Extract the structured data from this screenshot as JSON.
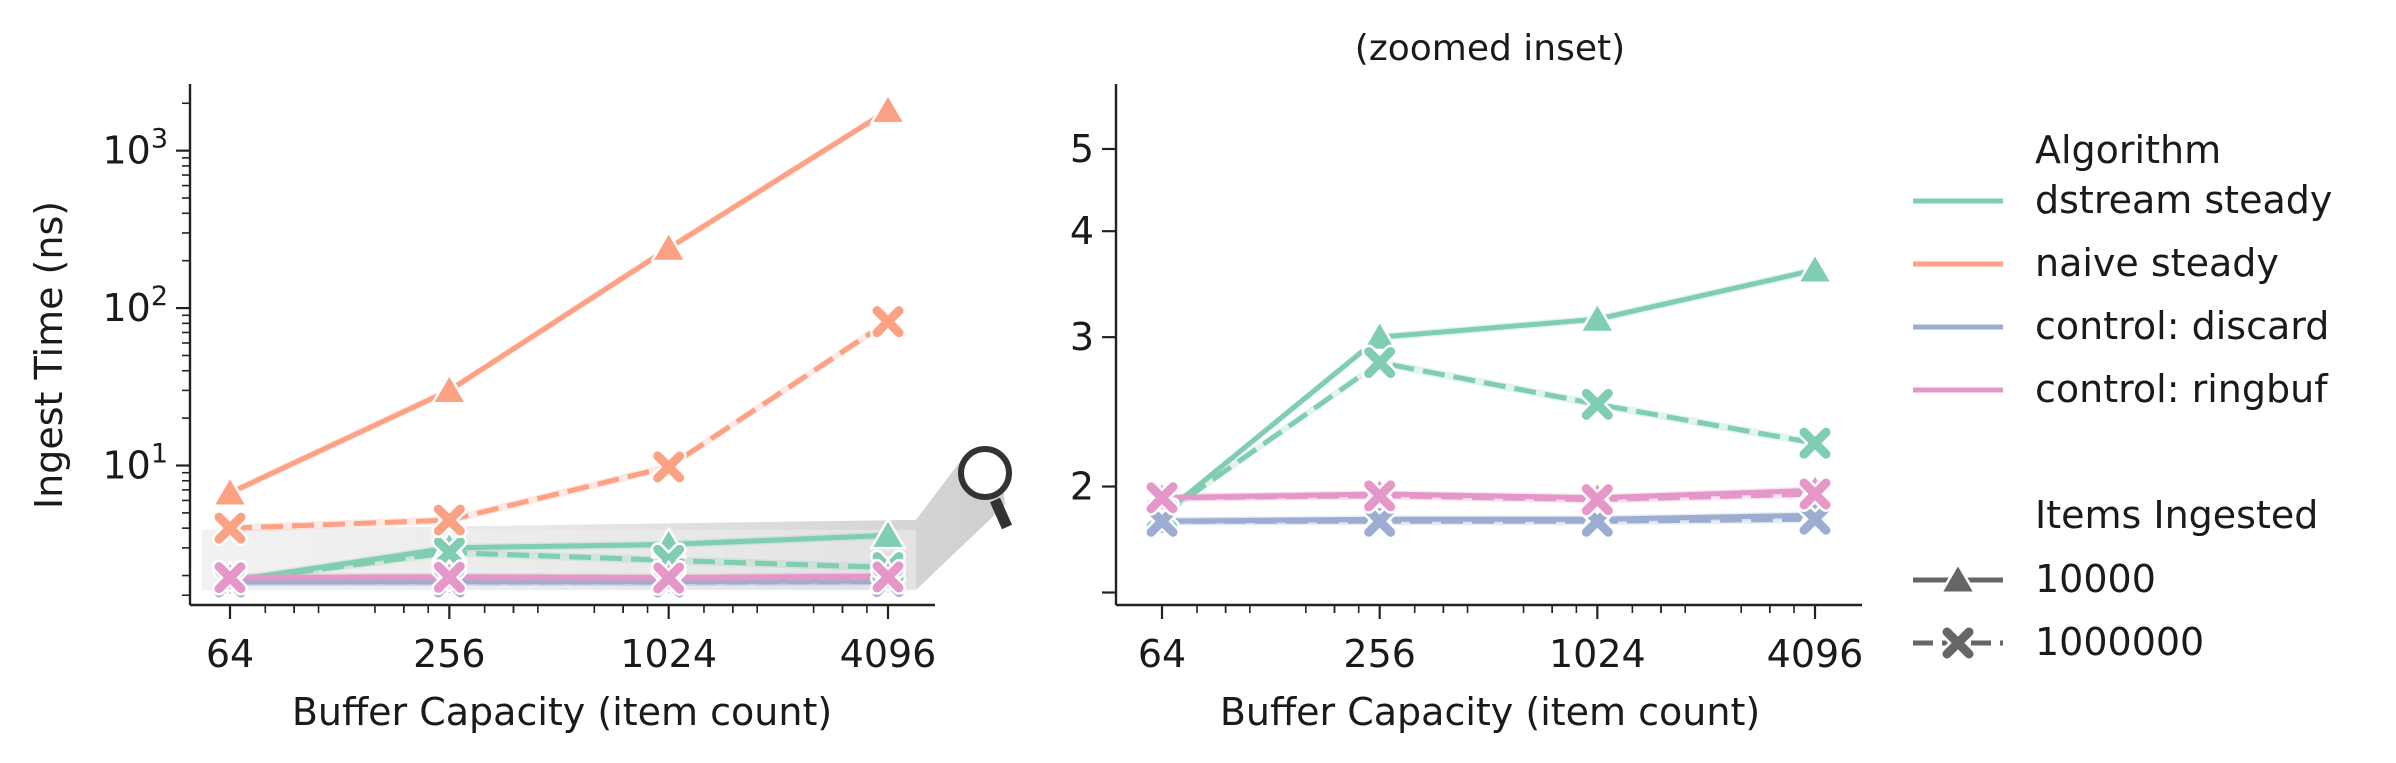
{
  "chart_data": [
    {
      "type": "line",
      "title": "",
      "xlabel": "Buffer Capacity (item count)",
      "ylabel": "Ingest Time (ns)",
      "xscale": "log2",
      "yscale": "log10",
      "xticks": [
        "64",
        "256",
        "1024",
        "4096"
      ],
      "yticks": [
        "10^1",
        "10^2",
        "10^3"
      ],
      "x": [
        64,
        256,
        1024,
        4096
      ],
      "ylim": [
        1.3,
        2500
      ],
      "series": [
        {
          "name": "dstream steady",
          "items": "10000",
          "values": [
            1.85,
            3.0,
            3.15,
            3.6
          ]
        },
        {
          "name": "dstream steady",
          "items": "1000000",
          "values": [
            1.85,
            2.8,
            2.5,
            2.25
          ]
        },
        {
          "name": "naive steady",
          "items": "10000",
          "values": [
            6.7,
            30,
            240,
            1800
          ]
        },
        {
          "name": "naive steady",
          "items": "1000000",
          "values": [
            4.0,
            4.5,
            9.8,
            82
          ]
        },
        {
          "name": "control: discard",
          "items": "10000",
          "values": [
            1.82,
            1.83,
            1.83,
            1.85
          ]
        },
        {
          "name": "control: discard",
          "items": "1000000",
          "values": [
            1.82,
            1.82,
            1.82,
            1.83
          ]
        },
        {
          "name": "control: ringbuf",
          "items": "10000",
          "values": [
            1.94,
            1.96,
            1.94,
            1.98
          ]
        },
        {
          "name": "control: ringbuf",
          "items": "1000000",
          "values": [
            1.94,
            1.95,
            1.93,
            1.96
          ]
        }
      ],
      "annotations": [
        "magnifier-icon",
        "zoom-region"
      ]
    },
    {
      "type": "line",
      "title": "(zoomed inset)",
      "xlabel": "Buffer Capacity (item count)",
      "ylabel": "",
      "xscale": "log2",
      "yscale": "log",
      "xticks": [
        "64",
        "256",
        "1024",
        "4096"
      ],
      "yticks": [
        "2",
        "3",
        "4",
        "5"
      ],
      "x": [
        64,
        256,
        1024,
        4096
      ],
      "ylim": [
        1.45,
        5.9
      ],
      "series": [
        {
          "name": "dstream steady",
          "items": "10000",
          "values": [
            1.85,
            3.0,
            3.15,
            3.6
          ]
        },
        {
          "name": "dstream steady",
          "items": "1000000",
          "values": [
            1.85,
            2.8,
            2.5,
            2.25
          ]
        },
        {
          "name": "control: discard",
          "items": "10000",
          "values": [
            1.82,
            1.83,
            1.83,
            1.85
          ]
        },
        {
          "name": "control: discard",
          "items": "1000000",
          "values": [
            1.82,
            1.82,
            1.82,
            1.83
          ]
        },
        {
          "name": "control: ringbuf",
          "items": "10000",
          "values": [
            1.94,
            1.96,
            1.94,
            1.98
          ]
        },
        {
          "name": "control: ringbuf",
          "items": "1000000",
          "values": [
            1.94,
            1.95,
            1.93,
            1.96
          ]
        }
      ]
    }
  ],
  "legend": {
    "placement": "right",
    "algorithm_title": "Algorithm",
    "algorithms": [
      {
        "name": "dstream steady",
        "color": "#7fcdb2"
      },
      {
        "name": "naive steady",
        "color": "#fca183"
      },
      {
        "name": "control: discard",
        "color": "#9dadd1"
      },
      {
        "name": "control: ringbuf",
        "color": "#e597c8"
      }
    ],
    "items_title": "Items Ingested",
    "items": [
      {
        "label": "10000",
        "marker": "triangle",
        "dash": "solid"
      },
      {
        "label": "1000000",
        "marker": "x",
        "dash": "dashed"
      }
    ],
    "handle_color": "#666666"
  }
}
